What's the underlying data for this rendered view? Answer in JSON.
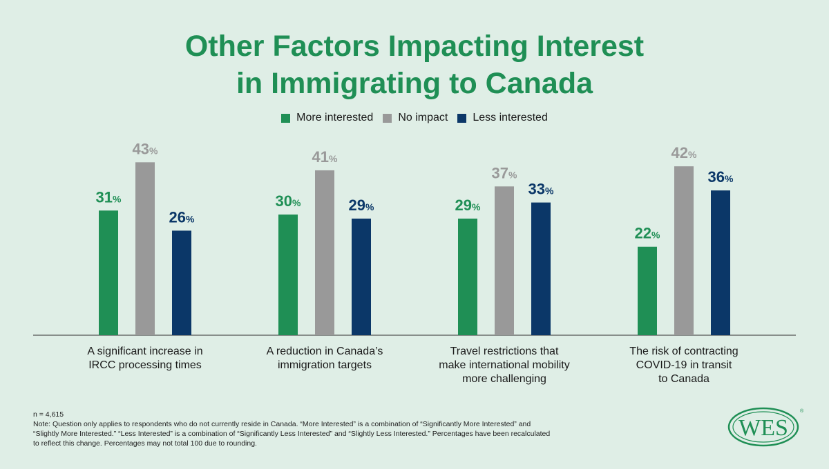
{
  "header": {
    "title_line1": "Other Factors Impacting Interest",
    "title_line2": "in Immigrating to Canada"
  },
  "legend": [
    {
      "label": "More interested",
      "color": "#1f8f55"
    },
    {
      "label": "No impact",
      "color": "#999999"
    },
    {
      "label": "Less interested",
      "color": "#0b3768"
    }
  ],
  "chart_data": {
    "type": "bar",
    "categories": [
      [
        "A significant increase in",
        "IRCC processing times"
      ],
      [
        "A reduction in Canada’s",
        "immigration targets"
      ],
      [
        "Travel restrictions that",
        "make international mobility",
        "more challenging"
      ],
      [
        "The risk of contracting",
        "COVID-19 in transit",
        "to Canada"
      ]
    ],
    "series": [
      {
        "name": "More interested",
        "values": [
          31,
          30,
          29,
          22
        ],
        "color": "#1f8f55"
      },
      {
        "name": "No impact",
        "values": [
          43,
          41,
          37,
          42
        ],
        "color": "#999999"
      },
      {
        "name": "Less interested",
        "values": [
          26,
          29,
          33,
          36
        ],
        "color": "#0b3768"
      }
    ],
    "value_suffix": "%",
    "ylim": [
      0,
      45
    ],
    "grid": false,
    "legend_position": "top-center"
  },
  "footnote": {
    "n": "n = 4,615",
    "note_line1": "Note: Question only applies to respondents who do not currently reside in Canada. “More Interested” is a combination of “Significantly More Interested” and",
    "note_line2": "“Slightly More Interested.” “Less Interested” is a combination of “Significantly Less Interested” and “Slightly Less Interested.” Percentages have been recalculated",
    "note_line3": "to reflect this change. Percentages may not total 100 due to rounding."
  },
  "logo": {
    "text": "WES",
    "color": "#1f8f55"
  }
}
